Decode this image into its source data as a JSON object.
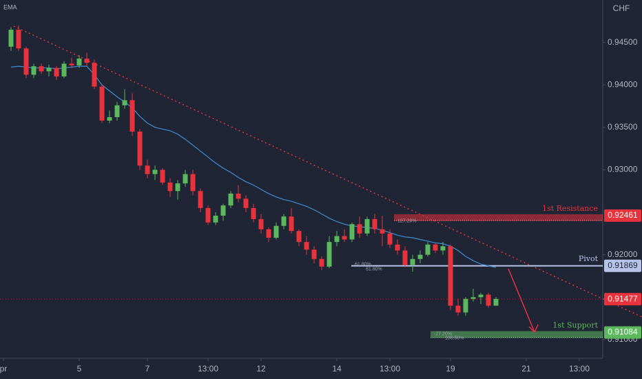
{
  "chart_data": {
    "type": "candlestick",
    "indicator_label": "EMA",
    "currency": "CHF",
    "up_color": "#5cb85c",
    "down_color": "#e8323c",
    "ema_color": "#3d8fd6",
    "ylim": [
      0.9078,
      0.95
    ],
    "yticks": [
      {
        "value": 0.945,
        "label": "0.94500"
      },
      {
        "value": 0.94,
        "label": "0.94000"
      },
      {
        "value": 0.935,
        "label": "0.93500"
      },
      {
        "value": 0.93,
        "label": "0.93000"
      },
      {
        "value": 0.92,
        "label": "0.92000"
      },
      {
        "value": 0.91,
        "label": "0.91000"
      }
    ],
    "categories": [
      "pr",
      null,
      null,
      null,
      null,
      null,
      null,
      null,
      null,
      null,
      "5",
      null,
      null,
      null,
      null,
      null,
      null,
      null,
      null,
      "7",
      null,
      null,
      null,
      null,
      null,
      null,
      null,
      "13:00",
      null,
      null,
      null,
      null,
      null,
      null,
      "12",
      null,
      null,
      null,
      null,
      null,
      null,
      null,
      null,
      null,
      "14",
      null,
      null,
      null,
      null,
      null,
      null,
      "13:00",
      null,
      null,
      null,
      null,
      null,
      null,
      null,
      "19",
      null,
      null,
      null,
      null,
      null,
      null,
      null,
      null,
      null,
      "21",
      null,
      null,
      null,
      null,
      null,
      null,
      "13:00",
      null,
      null,
      null
    ],
    "open": [
      null,
      0.9445,
      0.9465,
      0.9443,
      0.9412,
      0.9422,
      0.9416,
      0.942,
      0.941,
      0.9425,
      0.9423,
      0.9431,
      0.9426,
      0.9398,
      0.9358,
      0.9362,
      0.9376,
      0.9382,
      0.9345,
      0.9305,
      0.9295,
      0.93,
      0.9285,
      0.9275,
      0.9284,
      0.9295,
      0.9275,
      0.9255,
      0.9238,
      0.9246,
      0.9258,
      0.9272,
      0.9266,
      0.9255,
      0.9242,
      0.923,
      0.922,
      0.9234,
      0.9245,
      0.9228,
      0.9215,
      0.9206,
      0.9195,
      0.9186,
      0.9215,
      0.9222,
      0.9218,
      0.9236,
      0.9225,
      0.9242,
      0.923,
      0.9225,
      0.9212,
      0.9205,
      0.9188,
      0.9195,
      0.92,
      0.9212,
      0.9205,
      0.921,
      0.914,
      0.9132,
      0.9148,
      0.915,
      0.9153,
      0.914,
      null,
      null,
      null,
      null,
      null,
      null,
      null,
      null,
      null,
      null,
      null,
      null,
      null,
      null
    ],
    "high": [
      null,
      0.9468,
      0.947,
      0.9445,
      0.9425,
      0.9425,
      0.9424,
      0.9422,
      0.9428,
      0.9432,
      0.9435,
      0.9438,
      0.943,
      0.94,
      0.937,
      0.938,
      0.9395,
      0.939,
      0.9348,
      0.9312,
      0.9305,
      0.9302,
      0.929,
      0.9288,
      0.93,
      0.93,
      0.9278,
      0.9258,
      0.925,
      0.926,
      0.9275,
      0.9282,
      0.927,
      0.926,
      0.9248,
      0.9232,
      0.9238,
      0.9248,
      0.9255,
      0.923,
      0.9222,
      0.921,
      0.9198,
      0.9222,
      0.9228,
      0.923,
      0.9238,
      0.9245,
      0.9245,
      0.9248,
      0.9246,
      0.923,
      0.9218,
      0.921,
      0.92,
      0.9205,
      0.9215,
      0.9214,
      0.9215,
      0.9212,
      0.9148,
      0.915,
      0.916,
      0.9155,
      0.9155,
      0.915,
      null,
      null,
      null,
      null,
      null,
      null,
      null,
      null,
      null,
      null,
      null,
      null,
      null,
      null
    ],
    "low": [
      null,
      0.944,
      0.944,
      0.9408,
      0.9408,
      0.9413,
      0.941,
      0.9406,
      0.9408,
      0.942,
      0.942,
      0.9422,
      0.9395,
      0.9355,
      0.9355,
      0.9358,
      0.9372,
      0.934,
      0.93,
      0.929,
      0.9288,
      0.9282,
      0.9268,
      0.9265,
      0.928,
      0.927,
      0.925,
      0.9235,
      0.9235,
      0.924,
      0.9255,
      0.9262,
      0.925,
      0.9238,
      0.9225,
      0.9215,
      0.9218,
      0.923,
      0.9225,
      0.921,
      0.92,
      0.919,
      0.9182,
      0.9184,
      0.921,
      0.9215,
      0.9215,
      0.922,
      0.9222,
      0.9225,
      0.921,
      0.9208,
      0.92,
      0.9185,
      0.918,
      0.919,
      0.9198,
      0.9202,
      0.92,
      0.9135,
      0.9128,
      0.9128,
      0.9145,
      0.9142,
      0.9138,
      0.914,
      null,
      null,
      null,
      null,
      null,
      null,
      null,
      null,
      null,
      null,
      null,
      null,
      null,
      null
    ],
    "close": [
      null,
      0.9465,
      0.9443,
      0.9412,
      0.9422,
      0.9416,
      0.942,
      0.941,
      0.9425,
      0.9423,
      0.9431,
      0.9426,
      0.9398,
      0.9358,
      0.9362,
      0.9376,
      0.9382,
      0.9345,
      0.9305,
      0.9295,
      0.93,
      0.9285,
      0.9275,
      0.9284,
      0.9295,
      0.9275,
      0.9255,
      0.9238,
      0.9246,
      0.9258,
      0.9272,
      0.9266,
      0.9255,
      0.9242,
      0.923,
      0.922,
      0.9234,
      0.9245,
      0.9228,
      0.9215,
      0.9206,
      0.9195,
      0.9186,
      0.9215,
      0.9222,
      0.9218,
      0.9236,
      0.9225,
      0.9242,
      0.923,
      0.9225,
      0.9212,
      0.9205,
      0.9188,
      0.9195,
      0.92,
      0.9212,
      0.9205,
      0.921,
      0.914,
      0.9132,
      0.9148,
      0.915,
      0.9153,
      0.914,
      0.9148,
      null,
      null,
      null,
      null,
      null,
      null,
      null,
      null,
      null,
      null,
      null,
      null,
      null,
      null
    ],
    "ema": [
      null,
      0.9421,
      0.9422,
      0.9421,
      0.942,
      0.942,
      0.942,
      0.9419,
      0.942,
      0.9421,
      0.9422,
      0.9422,
      0.9412,
      0.94,
      0.9393,
      0.9386,
      0.938,
      0.9373,
      0.9363,
      0.9355,
      0.935,
      0.9348,
      0.9346,
      0.9342,
      0.9336,
      0.9329,
      0.9322,
      0.9315,
      0.9308,
      0.9302,
      0.9297,
      0.9291,
      0.9286,
      0.9282,
      0.9277,
      0.9272,
      0.9268,
      0.9265,
      0.9263,
      0.926,
      0.9257,
      0.9253,
      0.9248,
      0.9243,
      0.9239,
      0.9236,
      0.9234,
      0.9233,
      0.9232,
      0.9231,
      0.9229,
      0.9226,
      0.9223,
      0.9221,
      0.922,
      0.9218,
      0.9216,
      0.9214,
      0.9213,
      0.921,
      0.9205,
      0.9198,
      0.9193,
      0.9189,
      0.9187,
      0.9185,
      null,
      null,
      null,
      null,
      null,
      null,
      null,
      null,
      null,
      null,
      null,
      null,
      null,
      null
    ],
    "levels": [
      {
        "name": "1st Resistance",
        "value": 0.92461,
        "color": "#e8323c",
        "fib_labels": [
          "127.20%"
        ]
      },
      {
        "name": "Pivot",
        "value": 0.91869,
        "color": "#b7c4ea",
        "fib_labels": [
          "61.80%",
          "61.80%"
        ]
      },
      {
        "name": "1st Support",
        "value": 0.91084,
        "color": "#5cb85c",
        "fib_labels": [
          "-27.20%",
          "100.00%"
        ]
      }
    ],
    "last_price": 0.91477
  }
}
